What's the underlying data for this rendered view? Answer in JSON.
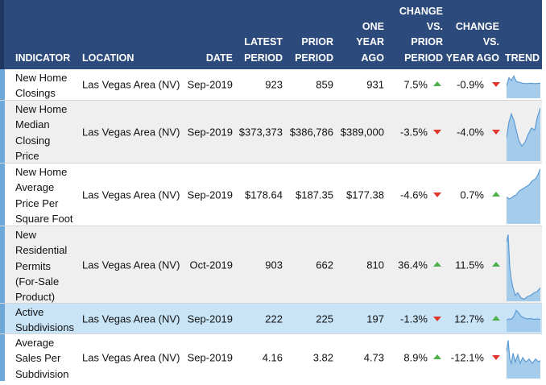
{
  "columns": {
    "indicator": "INDICATOR",
    "location": "LOCATION",
    "date": "DATE",
    "latest": "LATEST\nPERIOD",
    "prior": "PRIOR\nPERIOD",
    "year_ago": "ONE\nYEAR\nAGO",
    "change_prior": "CHANGE\nVS.\nPRIOR\nPERIOD",
    "change_year": "CHANGE\nVS.\nYEAR AGO",
    "trend": "TREND"
  },
  "colors": {
    "header": "#2c4a7b",
    "up": "#4db04a",
    "down": "#e0372a",
    "highlight": "#c9e4f7",
    "spark": "#5b9bd5"
  },
  "rows": [
    {
      "indicator": "New Home\nClosings",
      "location": "Las Vegas Area (NV)",
      "date": "Sep-2019",
      "latest": "923",
      "prior": "859",
      "year_ago": "931",
      "change_prior": "7.5%",
      "change_prior_dir": "up",
      "change_year": "-0.9%",
      "change_year_dir": "down",
      "trend_icon": "sparkline-chart"
    },
    {
      "indicator": "New Home\nMedian\nClosing\nPrice",
      "location": "Las Vegas Area (NV)",
      "date": "Sep-2019",
      "latest": "$373,373",
      "prior": "$386,786",
      "year_ago": "$389,000",
      "change_prior": "-3.5%",
      "change_prior_dir": "down",
      "change_year": "-4.0%",
      "change_year_dir": "down",
      "trend_icon": "sparkline-chart"
    },
    {
      "indicator": "New Home\nAverage\nPrice Per\nSquare Foot",
      "location": "Las Vegas Area (NV)",
      "date": "Sep-2019",
      "latest": "$178.64",
      "prior": "$187.35",
      "year_ago": "$177.38",
      "change_prior": "-4.6%",
      "change_prior_dir": "down",
      "change_year": "0.7%",
      "change_year_dir": "up",
      "trend_icon": "sparkline-chart"
    },
    {
      "indicator": "New\nResidential\nPermits\n(For-Sale\nProduct)",
      "location": "Las Vegas Area (NV)",
      "date": "Oct-2019",
      "latest": "903",
      "prior": "662",
      "year_ago": "810",
      "change_prior": "36.4%",
      "change_prior_dir": "up",
      "change_year": "11.5%",
      "change_year_dir": "up",
      "trend_icon": "sparkline-chart"
    },
    {
      "indicator": "Active\nSubdivisions",
      "location": "Las Vegas Area (NV)",
      "date": "Sep-2019",
      "latest": "222",
      "prior": "225",
      "year_ago": "197",
      "change_prior": "-1.3%",
      "change_prior_dir": "down",
      "change_year": "12.7%",
      "change_year_dir": "up",
      "trend_icon": "sparkline-chart"
    },
    {
      "indicator": "Average\nSales Per\nSubdivision",
      "location": "Las Vegas Area (NV)",
      "date": "Sep-2019",
      "latest": "4.16",
      "prior": "3.82",
      "year_ago": "4.73",
      "change_prior": "8.9%",
      "change_prior_dir": "up",
      "change_year": "-12.1%",
      "change_year_dir": "down",
      "trend_icon": "sparkline-chart"
    }
  ]
}
